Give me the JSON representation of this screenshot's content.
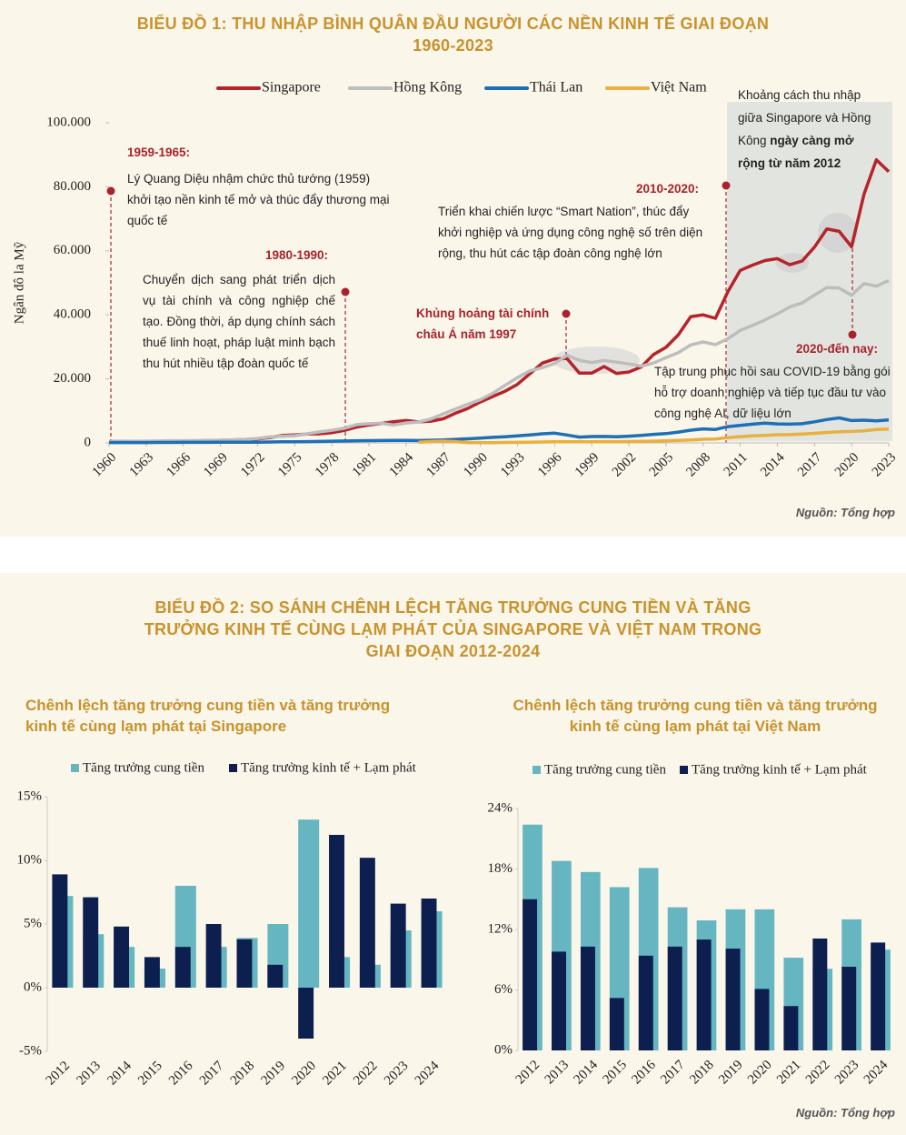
{
  "chart_data": [
    {
      "type": "line",
      "title": "BIỂU ĐỒ 1: THU NHẬP BÌNH QUÂN ĐẦU NGƯỜI CÁC NỀN KINH TẾ GIAI ĐOẠN 1960-2023",
      "y_label": "Ngân đô la Mỹ",
      "x": [
        1960,
        1961,
        1962,
        1963,
        1964,
        1965,
        1966,
        1967,
        1968,
        1969,
        1970,
        1971,
        1972,
        1973,
        1974,
        1975,
        1976,
        1977,
        1978,
        1979,
        1980,
        1981,
        1982,
        1983,
        1984,
        1985,
        1986,
        1987,
        1988,
        1989,
        1990,
        1991,
        1992,
        1993,
        1994,
        1995,
        1996,
        1997,
        1998,
        1999,
        2000,
        2001,
        2002,
        2003,
        2004,
        2005,
        2006,
        2007,
        2008,
        2009,
        2010,
        2011,
        2012,
        2013,
        2014,
        2015,
        2016,
        2017,
        2018,
        2019,
        2020,
        2021,
        2022,
        2023
      ],
      "xlim": [
        1960,
        2023
      ],
      "xticks": [
        1960,
        1963,
        1966,
        1969,
        1972,
        1975,
        1978,
        1981,
        1984,
        1987,
        1990,
        1993,
        1996,
        1999,
        2002,
        2005,
        2008,
        2011,
        2014,
        2017,
        2020,
        2023
      ],
      "ylim": [
        0,
        100000
      ],
      "yticks": [
        {
          "value": 0,
          "label": "0"
        },
        {
          "value": 20000,
          "label": "20.000"
        },
        {
          "value": 40000,
          "label": "40.000"
        },
        {
          "value": 60000,
          "label": "60.000"
        },
        {
          "value": 80000,
          "label": "80.000"
        },
        {
          "value": 100000,
          "label": "100.000"
        }
      ],
      "series": [
        {
          "name": "Singapore",
          "color": "#b5242b",
          "values": [
            430,
            450,
            470,
            510,
            490,
            520,
            570,
            620,
            710,
            810,
            930,
            1070,
            1260,
            1690,
            2340,
            2490,
            2760,
            2850,
            3190,
            3900,
            4930,
            5600,
            6080,
            6630,
            7000,
            6560,
            6800,
            7540,
            9300,
            10790,
            12770,
            14500,
            16140,
            18300,
            21550,
            24910,
            26230,
            26380,
            21830,
            21800,
            23850,
            21700,
            22160,
            23730,
            27610,
            29870,
            33770,
            39430,
            40000,
            38930,
            47240,
            53890,
            55550,
            56970,
            57560,
            55650,
            56830,
            61160,
            66840,
            66070,
            61270,
            77710,
            88430,
            84730
          ]
        },
        {
          "name": "Hồng Kông",
          "color": "#bdbdbd",
          "values": [
            430,
            460,
            480,
            550,
            600,
            680,
            690,
            720,
            710,
            830,
            960,
            1100,
            1380,
            1880,
            2100,
            2250,
            2850,
            3450,
            3920,
            4560,
            5700,
            5990,
            6130,
            5600,
            6210,
            6540,
            7440,
            9070,
            10610,
            12100,
            13490,
            15470,
            17980,
            20400,
            22500,
            23500,
            24820,
            27330,
            25810,
            25090,
            25760,
            25230,
            24670,
            23980,
            24930,
            26650,
            28220,
            30590,
            31520,
            30700,
            32550,
            35140,
            36730,
            38400,
            40320,
            42430,
            43730,
            46170,
            48540,
            48360,
            46110,
            49800,
            48980,
            50700
          ]
        },
        {
          "name": "Thái Lan",
          "color": "#1f6fb5",
          "values": [
            100,
            110,
            110,
            120,
            130,
            140,
            160,
            170,
            180,
            190,
            190,
            200,
            210,
            270,
            340,
            360,
            400,
            450,
            530,
            600,
            680,
            720,
            740,
            780,
            800,
            740,
            810,
            920,
            1110,
            1280,
            1510,
            1720,
            1930,
            2210,
            2500,
            2850,
            3040,
            2470,
            1830,
            2000,
            2010,
            1890,
            2100,
            2360,
            2660,
            2900,
            3370,
            3970,
            4380,
            4210,
            5080,
            5490,
            5860,
            6170,
            5950,
            5840,
            6000,
            6600,
            7300,
            7820,
            7000,
            7100,
            6910,
            7180
          ]
        },
        {
          "name": "Việt Nam",
          "color": "#e8b040",
          "values": [
            null,
            null,
            null,
            null,
            null,
            null,
            null,
            null,
            null,
            null,
            null,
            null,
            null,
            null,
            null,
            null,
            null,
            null,
            null,
            null,
            null,
            null,
            null,
            null,
            null,
            231,
            422,
            580,
            400,
            96,
            95,
            98,
            140,
            183,
            220,
            288,
            338,
            361,
            361,
            375,
            390,
            405,
            431,
            482,
            550,
            687,
            784,
            907,
            1149,
            1217,
            1684,
            1954,
            2190,
            2368,
            2558,
            2595,
            2760,
            2992,
            3267,
            3491,
            3586,
            3756,
            4164,
            4347
          ]
        }
      ]
    },
    {
      "type": "bar",
      "title": "Chênh lệch tăng trưởng cung tiền và tăng trưởng kinh tế cùng lạm phát tại Singapore",
      "categories": [
        "2012",
        "2013",
        "2014",
        "2015",
        "2016",
        "2017",
        "2018",
        "2019",
        "2020",
        "2021",
        "2022",
        "2023",
        "2024"
      ],
      "ylim": [
        -5,
        15
      ],
      "yticks": [
        {
          "value": -5,
          "label": "-5%"
        },
        {
          "value": 0,
          "label": "0%"
        },
        {
          "value": 5,
          "label": "5%"
        },
        {
          "value": 10,
          "label": "10%"
        },
        {
          "value": 15,
          "label": "15%"
        }
      ],
      "series": [
        {
          "name": "Tăng trưởng cung tiền",
          "color": "#66b6c2",
          "values": [
            7.2,
            4.2,
            3.2,
            1.5,
            8.0,
            3.2,
            3.9,
            5.0,
            13.2,
            2.4,
            1.8,
            4.5,
            6.0
          ]
        },
        {
          "name": "Tăng trưởng kinh tế + Lạm phát",
          "color": "#0d1f4f",
          "values": [
            8.9,
            7.1,
            4.8,
            2.4,
            3.2,
            5.0,
            3.8,
            1.8,
            -4.0,
            12.0,
            10.2,
            6.6,
            7.0
          ]
        }
      ]
    },
    {
      "type": "bar",
      "title": "Chênh lệch tăng trưởng cung tiền và tăng trưởng kinh tế cùng lạm phát tại Việt Nam",
      "categories": [
        "2012",
        "2013",
        "2014",
        "2015",
        "2016",
        "2017",
        "2018",
        "2019",
        "2020",
        "2021",
        "2022",
        "2023",
        "2024"
      ],
      "ylim": [
        0,
        24
      ],
      "yticks": [
        {
          "value": 0,
          "label": "0%"
        },
        {
          "value": 6,
          "label": "6%"
        },
        {
          "value": 12,
          "label": "12%"
        },
        {
          "value": 18,
          "label": "18%"
        },
        {
          "value": 24,
          "label": "24%"
        }
      ],
      "series": [
        {
          "name": "Tăng trưởng cung tiền",
          "color": "#66b6c2",
          "values": [
            22.4,
            18.8,
            17.7,
            16.2,
            18.1,
            14.2,
            12.9,
            14.0,
            14.0,
            9.2,
            8.1,
            13.0,
            10.0
          ]
        },
        {
          "name": "Tăng trưởng kinh tế + Lạm phát",
          "color": "#0d1f4f",
          "values": [
            15.0,
            9.8,
            10.3,
            5.2,
            9.4,
            10.3,
            11.0,
            10.1,
            6.1,
            4.4,
            11.1,
            8.3,
            10.7
          ]
        }
      ]
    }
  ],
  "annotations": [
    {
      "title": "1959-1965:",
      "text": "Lý Quang Diệu nhậm chức thủ tướng (1959) khởi tạo nền kinh tế mở và thúc đẩy thương mại quốc tế"
    },
    {
      "title": "1980-1990:",
      "text": "Chuyển dịch sang phát triển dịch vụ tài chính và công nghiệp chế tạo. Đồng thời, áp dụng chính sách thuế linh hoạt, pháp luật minh bạch thu hút nhiều tập đoàn quốc tế"
    },
    {
      "title": "Khủng hoảng tài chính châu Á năm 1997"
    },
    {
      "title": "2010-2020:",
      "text": "Triển khai chiến lược “Smart Nation”, thúc đẩy khởi nghiệp và ứng dụng công nghệ số trên diện rộng, thu hút các tập đoàn công nghệ lớn"
    },
    {
      "title": "2020-đến nay:",
      "text": "Tập trung phục hồi sau COVID-19 bằng gói hỗ trợ doanh nghiệp và tiếp tục đầu tư vào công nghệ AI, dữ liệu lớn"
    }
  ],
  "gap_note": {
    "text": "Khoảng cách thu nhập giữa Singapore và Hồng Kông",
    "bold": "ngày càng mở rộng từ năm 2012"
  },
  "section_2_title": "BIỂU ĐỒ 2: SO SÁNH CHÊNH LỆCH TĂNG TRƯỞNG CUNG TIỀN VÀ TĂNG TRƯỞNG KINH TẾ CÙNG LẠM PHÁT CỦA SINGAPORE VÀ VIỆT NAM TRONG GIAI ĐOẠN 2012-2024",
  "sources": [
    "Nguồn: Tổng hợp",
    "Nguồn: Tổng hợp"
  ]
}
